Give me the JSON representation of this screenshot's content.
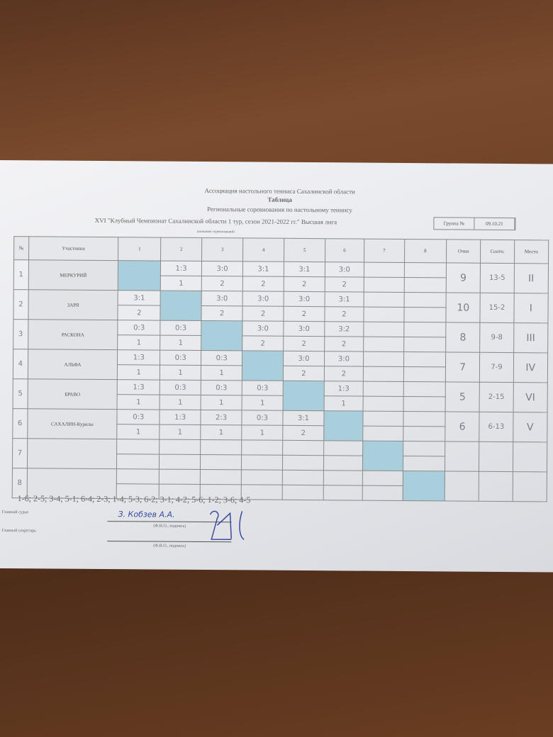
{
  "header": {
    "org": "Ассоциация настольного тенниса Сахалинской области",
    "title": "Таблица",
    "subtitle": "Региональные соревнования по настольному теннису",
    "event": "XVI \"Клубный Чемпионат Сахалинской области 1 тур, сезон 2021-2022 гг.\" Высшая лига",
    "event_caption": "(название соревнований)",
    "group_label": "Группа №",
    "date": "09.10.21"
  },
  "columns": [
    "№",
    "Участники",
    "1",
    "2",
    "3",
    "4",
    "5",
    "6",
    "7",
    "8",
    "Очки",
    "Соотн.",
    "Место"
  ],
  "rows": [
    {
      "num": "1",
      "name": "МЕРКУРИЙ",
      "scores": [
        "",
        "1:3",
        "3:0",
        "3:1",
        "3:1",
        "3:0",
        "",
        ""
      ],
      "points": [
        "",
        "1",
        "2",
        "2",
        "2",
        "2",
        "",
        ""
      ],
      "total": "9",
      "ratio": "13-5",
      "place": "II"
    },
    {
      "num": "2",
      "name": "ЗАРЯ",
      "scores": [
        "3:1",
        "",
        "3:0",
        "3:0",
        "3:0",
        "3:1",
        "",
        ""
      ],
      "points": [
        "2",
        "",
        "2",
        "2",
        "2",
        "2",
        "",
        ""
      ],
      "total": "10",
      "ratio": "15-2",
      "place": "I"
    },
    {
      "num": "3",
      "name": "РАСКОНА",
      "scores": [
        "0:3",
        "0:3",
        "",
        "3:0",
        "3:0",
        "3:2",
        "",
        ""
      ],
      "points": [
        "1",
        "1",
        "",
        "2",
        "2",
        "2",
        "",
        ""
      ],
      "total": "8",
      "ratio": "9-8",
      "place": "III"
    },
    {
      "num": "4",
      "name": "АЛЬФА",
      "scores": [
        "1:3",
        "0:3",
        "0:3",
        "",
        "3:0",
        "3:0",
        "",
        ""
      ],
      "points": [
        "1",
        "1",
        "1",
        "",
        "2",
        "2",
        "",
        ""
      ],
      "total": "7",
      "ratio": "7-9",
      "place": "IV"
    },
    {
      "num": "5",
      "name": "БРАВО",
      "scores": [
        "1:3",
        "0:3",
        "0:3",
        "0:3",
        "",
        "1:3",
        "",
        ""
      ],
      "points": [
        "1",
        "1",
        "1",
        "1",
        "",
        "1",
        "",
        ""
      ],
      "total": "5",
      "ratio": "2-15",
      "place": "VI"
    },
    {
      "num": "6",
      "name": "САХАЛИН-Курилы",
      "scores": [
        "0:3",
        "1:3",
        "2:3",
        "0:3",
        "3:1",
        "",
        "",
        ""
      ],
      "points": [
        "1",
        "1",
        "1",
        "1",
        "2",
        "",
        "",
        ""
      ],
      "total": "6",
      "ratio": "6-13",
      "place": "V"
    },
    {
      "num": "7",
      "name": "",
      "scores": [
        "",
        "",
        "",
        "",
        "",
        "",
        "",
        ""
      ],
      "points": [
        "",
        "",
        "",
        "",
        "",
        "",
        "",
        ""
      ],
      "total": "",
      "ratio": "",
      "place": ""
    },
    {
      "num": "8",
      "name": "",
      "scores": [
        "",
        "",
        "",
        "",
        "",
        "",
        "",
        ""
      ],
      "points": [
        "",
        "",
        "",
        "",
        "",
        "",
        "",
        ""
      ],
      "total": "",
      "ratio": "",
      "place": ""
    }
  ],
  "schedule": "1-6; 2-5; 3-4; 5-1; 6-4; 2-3; 1-4; 5-3; 6-2; 3-1; 4-2; 5-6; 1-2; 3-6; 4-5",
  "footer": {
    "judge_label": "Главный судья",
    "secretary_label": "Главный секретарь",
    "sign_caption": "(Ф.И.О., подпись)",
    "judge_sign": "З. Кобзев А.А."
  },
  "colors": {
    "diagonal": "#a9cfdc",
    "wood": "#6b3f24"
  }
}
